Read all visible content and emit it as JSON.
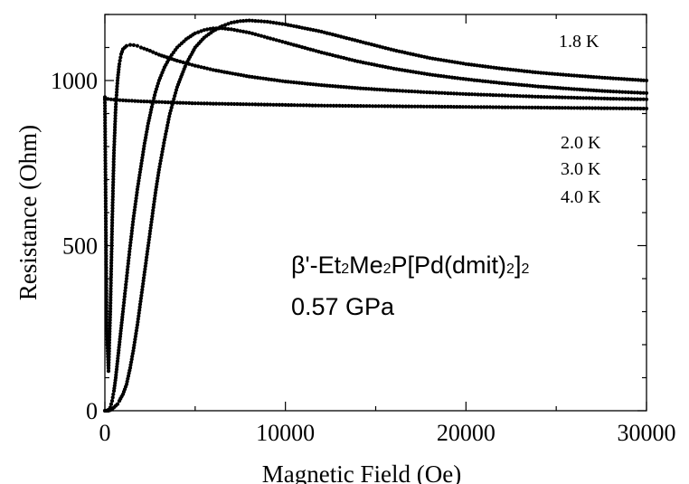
{
  "chart_data": {
    "type": "scatter",
    "xlabel": "Magnetic Field (Oe)",
    "ylabel": "Resistance (Ohm)",
    "xlim": [
      0,
      30000
    ],
    "ylim": [
      0,
      1200
    ],
    "xticks": [
      0,
      10000,
      20000,
      30000
    ],
    "xtick_labels": [
      "0",
      "10000",
      "20000",
      "30000"
    ],
    "yticks": [
      0,
      500,
      1000
    ],
    "ytick_labels": [
      "0",
      "500",
      "1000"
    ],
    "grid": false,
    "legend": "none",
    "annotations": [
      {
        "text": "1.8 K"
      },
      {
        "text": "2.0 K"
      },
      {
        "text": "3.0 K"
      },
      {
        "text": "4.0 K"
      }
    ],
    "compound": {
      "beta": "β'-Et",
      "s1": "2",
      "me": "Me",
      "s2": "2",
      "p": "P[Pd(dmit)",
      "s3": "2",
      "close": "]",
      "s4": "2"
    },
    "pressure": "0.57 GPa",
    "marker_color": "#000000",
    "series": [
      {
        "x": [
          0,
          100,
          200,
          300,
          400,
          500,
          600,
          700,
          800,
          1000,
          1200,
          1400,
          1600,
          1800,
          2000,
          2200,
          2400,
          2600,
          2800,
          3000,
          3300,
          3600,
          4000,
          4500,
          5000,
          5500,
          6000,
          6500,
          7000,
          7500,
          8000,
          9000,
          10000,
          12000,
          14000,
          16000,
          18000,
          20000,
          22000,
          24000,
          26000,
          28000,
          30000
        ],
        "y": [
          0,
          0,
          0,
          2,
          5,
          10,
          15,
          20,
          30,
          50,
          80,
          130,
          190,
          260,
          340,
          420,
          500,
          580,
          660,
          730,
          820,
          900,
          980,
          1050,
          1100,
          1130,
          1150,
          1165,
          1175,
          1180,
          1182,
          1178,
          1170,
          1148,
          1120,
          1092,
          1068,
          1050,
          1036,
          1024,
          1015,
          1007,
          1000
        ]
      },
      {
        "x": [
          0,
          100,
          200,
          300,
          400,
          500,
          600,
          700,
          800,
          900,
          1000,
          1200,
          1400,
          1600,
          1800,
          2000,
          2200,
          2400,
          2600,
          2800,
          3000,
          3300,
          3600,
          4000,
          4500,
          5000,
          5500,
          6000,
          6500,
          7000,
          8000,
          9000,
          10000,
          12000,
          14000,
          16000,
          18000,
          20000,
          22000,
          24000,
          26000,
          28000,
          30000
        ],
        "y": [
          0,
          0,
          3,
          10,
          30,
          60,
          100,
          150,
          200,
          250,
          300,
          400,
          500,
          590,
          670,
          740,
          810,
          870,
          920,
          965,
          1000,
          1040,
          1070,
          1100,
          1125,
          1143,
          1153,
          1158,
          1158,
          1155,
          1145,
          1130,
          1115,
          1085,
          1058,
          1036,
          1018,
          1004,
          992,
          982,
          974,
          967,
          962
        ]
      },
      {
        "x": [
          0,
          50,
          100,
          200,
          300,
          400,
          500,
          600,
          700,
          800,
          900,
          1000,
          1200,
          1400,
          1600,
          1800,
          2000,
          2500,
          3000,
          4000,
          5000,
          6000,
          8000,
          10000,
          12000,
          14000,
          16000,
          18000,
          20000,
          22000,
          24000,
          26000,
          28000,
          30000
        ],
        "y": [
          950,
          600,
          250,
          120,
          300,
          560,
          780,
          920,
          1000,
          1050,
          1080,
          1095,
          1105,
          1108,
          1107,
          1105,
          1100,
          1090,
          1078,
          1060,
          1045,
          1032,
          1012,
          997,
          986,
          977,
          970,
          964,
          959,
          955,
          951,
          948,
          945,
          943
        ]
      },
      {
        "x": [
          0,
          500,
          1000,
          2000,
          3000,
          4000,
          5000,
          6000,
          8000,
          10000,
          12000,
          14000,
          16000,
          18000,
          20000,
          22000,
          24000,
          26000,
          28000,
          30000
        ],
        "y": [
          945,
          942,
          940,
          937,
          935,
          933,
          931,
          930,
          928,
          926,
          924,
          923,
          922,
          921,
          920,
          919,
          918,
          917,
          916,
          915
        ]
      }
    ]
  }
}
